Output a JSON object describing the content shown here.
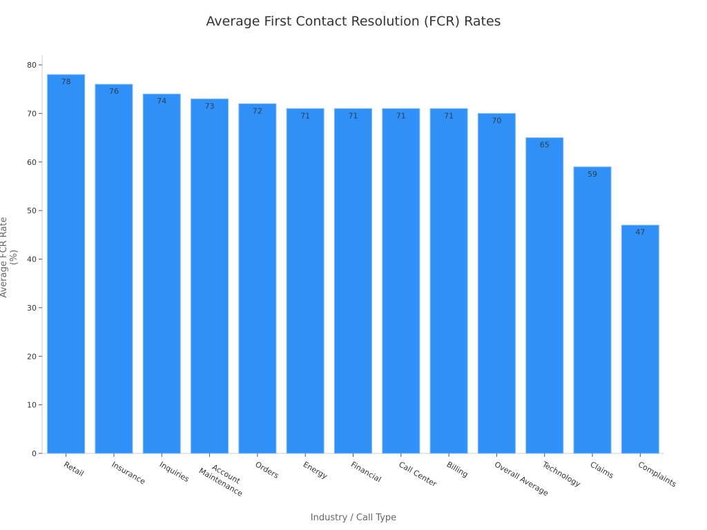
{
  "chart_data": {
    "type": "bar",
    "title": "Average First Contact Resolution (FCR) Rates",
    "xlabel": "Industry / Call Type",
    "ylabel": "Average FCR Rate (%)",
    "ylim": [
      0,
      82
    ],
    "yticks": [
      0,
      10,
      20,
      30,
      40,
      50,
      60,
      70,
      80
    ],
    "grid": false,
    "legend": null,
    "bar_color": "#2f91f7",
    "categories": [
      "Retail",
      "Insurance",
      "Inquiries",
      "Account\nMaintenance",
      "Orders",
      "Energy",
      "Financial",
      "Call Center",
      "Billing",
      "Overall Average",
      "Technology",
      "Claims",
      "Complaints"
    ],
    "values": [
      78,
      76,
      74,
      73,
      72,
      71,
      71,
      71,
      71,
      70,
      65,
      59,
      47
    ],
    "data_labels": [
      "78",
      "76",
      "74",
      "73",
      "72",
      "71",
      "71",
      "71",
      "71",
      "70",
      "65",
      "59",
      "47"
    ]
  }
}
